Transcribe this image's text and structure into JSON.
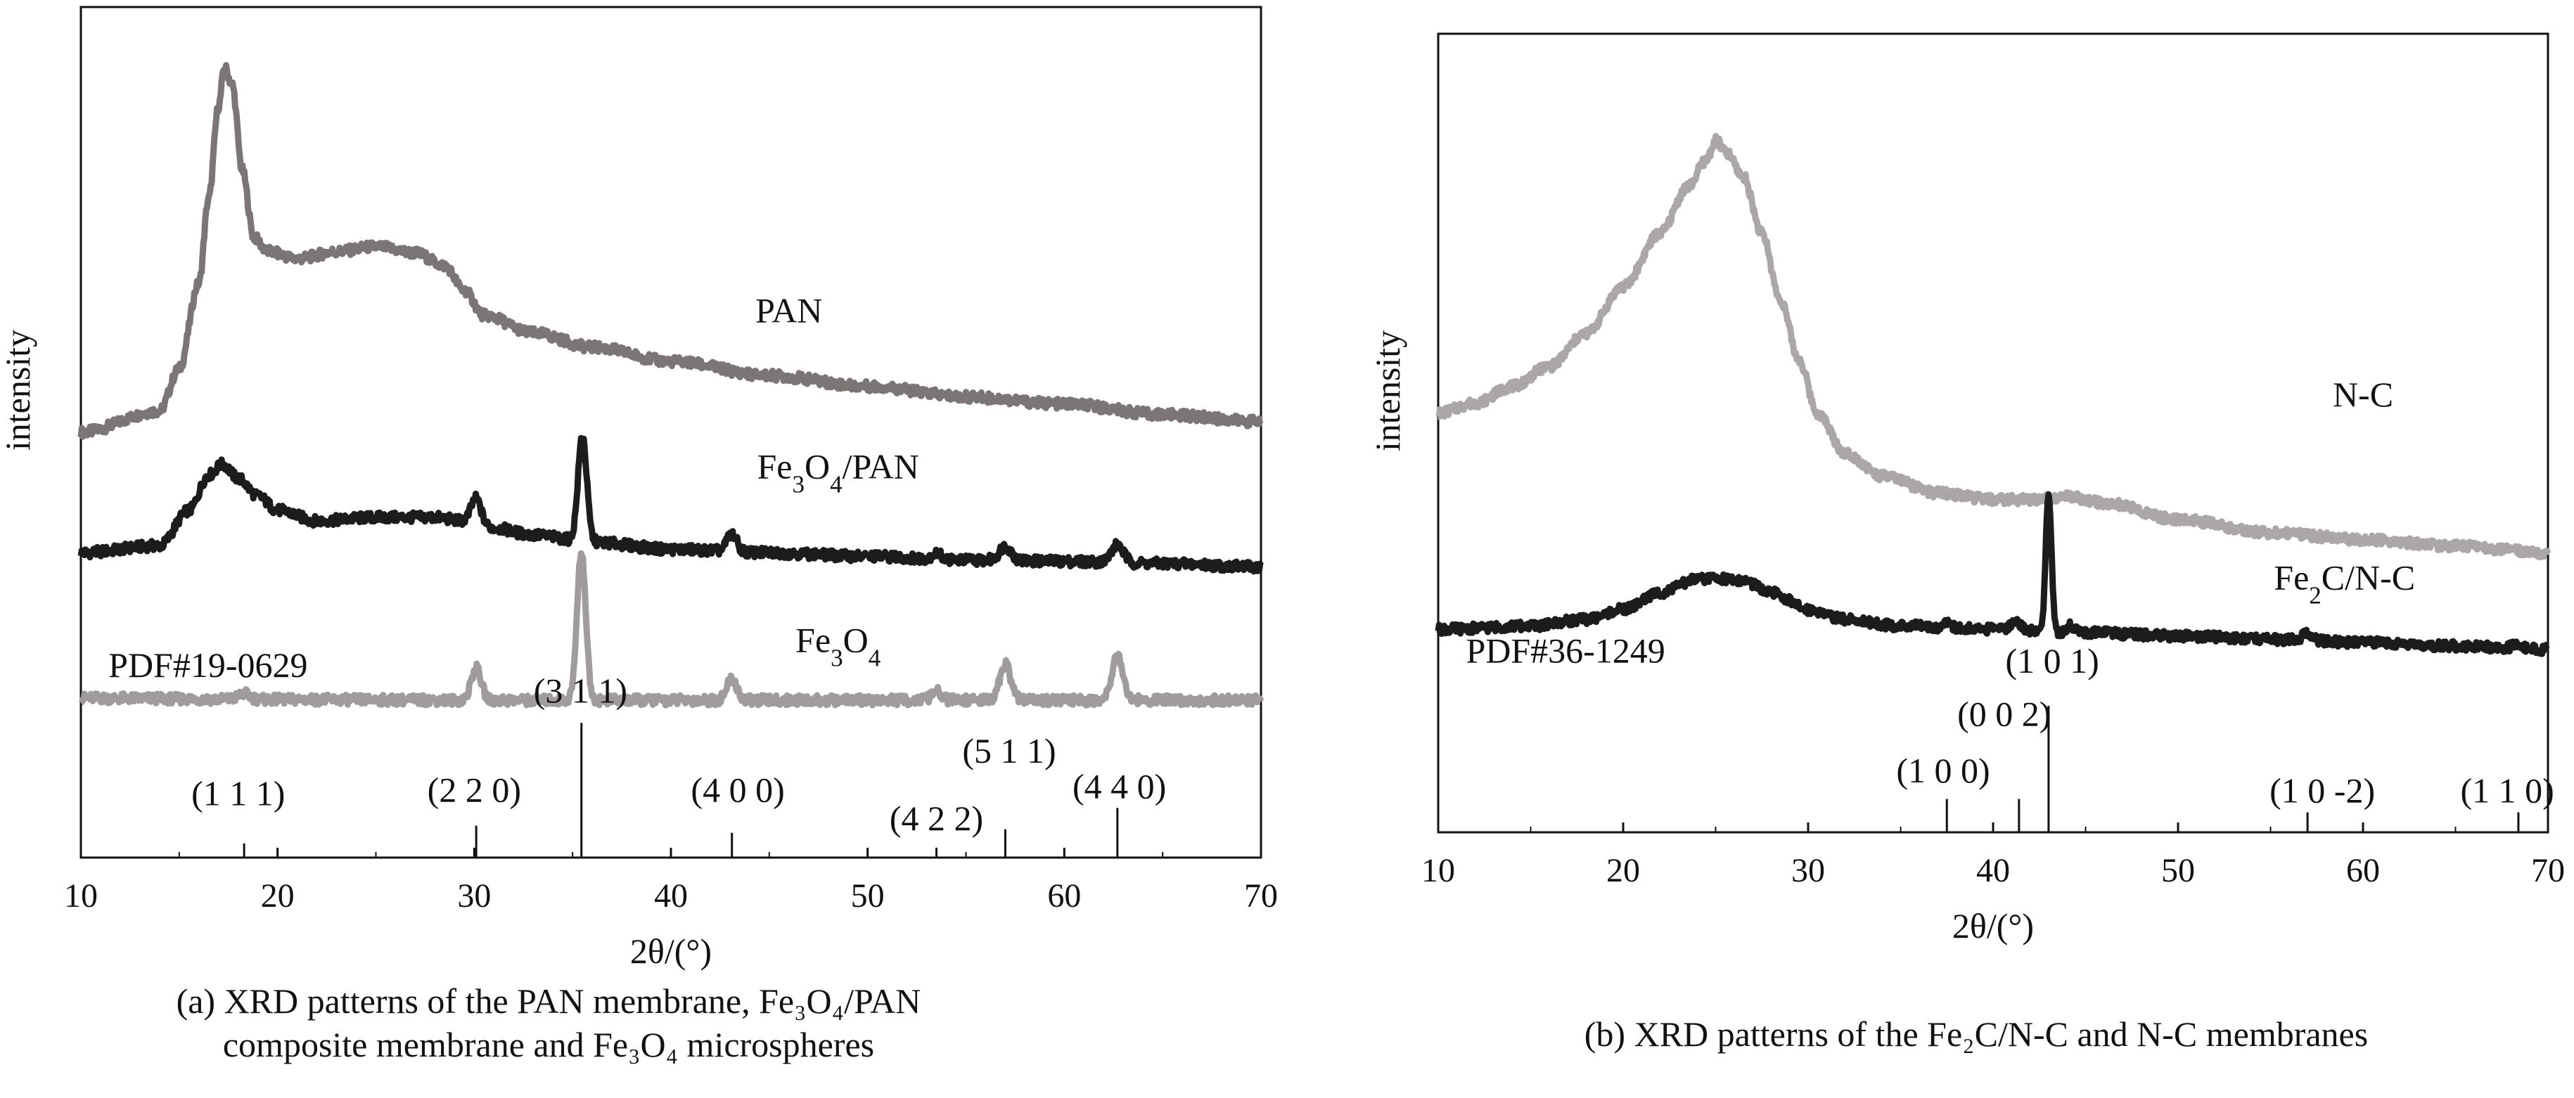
{
  "chart_data": [
    {
      "panel": "a",
      "type": "line",
      "title": "",
      "caption_line1": "(a) XRD patterns of the PAN membrane, Fe₃O₄/PAN",
      "caption_line2": "composite membrane and Fe₃O₄ microspheres",
      "xlabel": "2θ/(°)",
      "ylabel": "intensity",
      "xlim": [
        10,
        70
      ],
      "x_ticks": [
        10,
        20,
        30,
        40,
        50,
        60,
        70
      ],
      "grid": false,
      "legend": "none (inline series labels)",
      "series": [
        {
          "name": "PAN",
          "color": "#7b7576",
          "stroke": 9,
          "label_x": 46,
          "label_y": 0.755,
          "baseline": [
            [
              10,
              0.6
            ],
            [
              14,
              0.63
            ],
            [
              15,
              0.69
            ],
            [
              16,
              0.81
            ],
            [
              16.5,
              0.93
            ],
            [
              17.0,
              1.06
            ],
            [
              17.3,
              1.115
            ],
            [
              17.7,
              1.09
            ],
            [
              18.2,
              0.97
            ],
            [
              18.8,
              0.875
            ],
            [
              19.5,
              0.855
            ],
            [
              21,
              0.845
            ],
            [
              23,
              0.855
            ],
            [
              25,
              0.862
            ],
            [
              27,
              0.853
            ],
            [
              28.5,
              0.835
            ],
            [
              29.5,
              0.8
            ],
            [
              30.5,
              0.765
            ],
            [
              33,
              0.74
            ],
            [
              36,
              0.72
            ],
            [
              40,
              0.7
            ],
            [
              45,
              0.68
            ],
            [
              50,
              0.665
            ],
            [
              55,
              0.65
            ],
            [
              60,
              0.64
            ],
            [
              65,
              0.625
            ],
            [
              70,
              0.615
            ]
          ],
          "peaks": []
        },
        {
          "name": "Fe₃O₄/PAN",
          "color": "#1c1c1c",
          "stroke": 9,
          "label_x": 48.5,
          "label_y": 0.535,
          "baseline": [
            [
              10,
              0.43
            ],
            [
              14,
              0.44
            ],
            [
              15.5,
              0.49
            ],
            [
              16.5,
              0.54
            ],
            [
              17.2,
              0.555
            ],
            [
              18,
              0.535
            ],
            [
              19,
              0.51
            ],
            [
              20,
              0.49
            ],
            [
              22,
              0.475
            ],
            [
              25,
              0.48
            ],
            [
              28,
              0.48
            ],
            [
              29.5,
              0.475
            ],
            [
              31,
              0.465
            ],
            [
              33,
              0.455
            ],
            [
              36,
              0.445
            ],
            [
              40,
              0.435
            ],
            [
              45,
              0.43
            ],
            [
              50,
              0.425
            ],
            [
              55,
              0.42
            ],
            [
              60,
              0.418
            ],
            [
              65,
              0.415
            ],
            [
              70,
              0.41
            ]
          ],
          "peaks": [
            [
              30.1,
              0.035,
              0.25
            ],
            [
              35.5,
              0.15,
              0.22
            ],
            [
              43.1,
              0.025,
              0.25
            ],
            [
              53.5,
              0.008,
              0.25
            ],
            [
              57.0,
              0.02,
              0.3
            ],
            [
              62.7,
              0.025,
              0.3
            ]
          ]
        },
        {
          "name": "Fe₃O₄",
          "color": "#a09c9d",
          "stroke": 9,
          "label_x": 48.5,
          "label_y": 0.29,
          "baseline": [
            [
              10,
              0.225
            ],
            [
              20,
              0.223
            ],
            [
              30,
              0.222
            ],
            [
              40,
              0.222
            ],
            [
              50,
              0.222
            ],
            [
              60,
              0.222
            ],
            [
              70,
              0.222
            ]
          ],
          "peaks": [
            [
              18.3,
              0.008,
              0.3
            ],
            [
              30.1,
              0.045,
              0.25
            ],
            [
              35.45,
              0.21,
              0.22
            ],
            [
              43.1,
              0.03,
              0.25
            ],
            [
              53.5,
              0.012,
              0.25
            ],
            [
              57.0,
              0.05,
              0.28
            ],
            [
              62.7,
              0.065,
              0.28
            ]
          ]
        }
      ],
      "reference_label": "PDF#19-0629",
      "reference_label_x": 11.4,
      "reference_lines": [
        {
          "x": 18.3,
          "h": 0.02,
          "label": "(1 1 1)",
          "label_x": 18.0,
          "label_y": 0.06
        },
        {
          "x": 30.1,
          "h": 0.045,
          "label": "(2 2 0)",
          "label_x": 30.0,
          "label_y": 0.065
        },
        {
          "x": 35.45,
          "h": 0.19,
          "label": "(3 1 1)",
          "label_x": 35.4,
          "label_y": 0.205
        },
        {
          "x": 43.1,
          "h": 0.035,
          "label": "(4 0 0)",
          "label_x": 43.4,
          "label_y": 0.065
        },
        {
          "x": 53.5,
          "h": 0.014,
          "label": "(4 2 2)",
          "label_x": 53.5,
          "label_y": 0.025
        },
        {
          "x": 57.0,
          "h": 0.04,
          "label": "(5 1 1)",
          "label_x": 57.2,
          "label_y": 0.12
        },
        {
          "x": 62.7,
          "h": 0.07,
          "label": "(4 4 0)",
          "label_x": 62.8,
          "label_y": 0.07
        }
      ]
    },
    {
      "panel": "b",
      "type": "line",
      "title": "",
      "caption_line1": "(b) XRD patterns of the Fe₂C/N-C and N-C membranes",
      "caption_line2": "",
      "xlabel": "2θ/(°)",
      "ylabel": "intensity",
      "xlim": [
        10,
        70
      ],
      "x_ticks": [
        10,
        20,
        30,
        40,
        50,
        60,
        70
      ],
      "grid": false,
      "legend": "none (inline series labels)",
      "series": [
        {
          "name": "N-C",
          "color": "#aba7a8",
          "stroke": 9,
          "label_x": 60,
          "label_y": 0.64,
          "baseline": [
            [
              10,
              0.63
            ],
            [
              12,
              0.645
            ],
            [
              14,
              0.67
            ],
            [
              16,
              0.7
            ],
            [
              18,
              0.75
            ],
            [
              20,
              0.82
            ],
            [
              22,
              0.9
            ],
            [
              23.5,
              0.97
            ],
            [
              24.5,
              1.01
            ],
            [
              25.0,
              1.04
            ],
            [
              25.6,
              1.02
            ],
            [
              26.5,
              0.985
            ],
            [
              27.5,
              0.9
            ],
            [
              28.5,
              0.8
            ],
            [
              29.5,
              0.71
            ],
            [
              30.5,
              0.63
            ],
            [
              32,
              0.57
            ],
            [
              34,
              0.535
            ],
            [
              37,
              0.51
            ],
            [
              40,
              0.5
            ],
            [
              42,
              0.5
            ],
            [
              44,
              0.505
            ],
            [
              46,
              0.495
            ],
            [
              50,
              0.47
            ],
            [
              55,
              0.45
            ],
            [
              60,
              0.44
            ],
            [
              65,
              0.43
            ],
            [
              70,
              0.42
            ]
          ],
          "peaks": []
        },
        {
          "name": "Fe₂C/N-C",
          "color": "#1c1c1c",
          "stroke": 9,
          "label_x": 59,
          "label_y": 0.365,
          "baseline": [
            [
              10,
              0.305
            ],
            [
              15,
              0.31
            ],
            [
              18,
              0.32
            ],
            [
              20,
              0.335
            ],
            [
              22,
              0.36
            ],
            [
              24,
              0.38
            ],
            [
              25,
              0.382
            ],
            [
              26.5,
              0.378
            ],
            [
              28,
              0.36
            ],
            [
              30,
              0.335
            ],
            [
              32,
              0.32
            ],
            [
              35,
              0.31
            ],
            [
              40,
              0.305
            ],
            [
              45,
              0.3
            ],
            [
              50,
              0.295
            ],
            [
              55,
              0.29
            ],
            [
              60,
              0.285
            ],
            [
              65,
              0.28
            ],
            [
              70,
              0.275
            ]
          ],
          "peaks": [
            [
              37.5,
              0.01,
              0.2
            ],
            [
              41.2,
              0.015,
              0.25
            ],
            [
              43.0,
              0.21,
              0.15
            ],
            [
              44.2,
              0.01,
              0.2
            ],
            [
              57.0,
              0.012,
              0.25
            ],
            [
              68.4,
              0.008,
              0.25
            ]
          ]
        }
      ],
      "reference_label": "PDF#36-1249",
      "reference_label_x": 11.5,
      "reference_lines": [
        {
          "x": 37.5,
          "h": 0.05,
          "label": "(1 0 0)",
          "label_x": 37.3,
          "label_y": 0.06
        },
        {
          "x": 41.4,
          "h": 0.05,
          "label": "(0 0 2)",
          "label_x": 40.6,
          "label_y": 0.145
        },
        {
          "x": 43.0,
          "h": 0.19,
          "label": "(1 0 1)",
          "label_x": 43.2,
          "label_y": 0.225
        },
        {
          "x": 57.0,
          "h": 0.03,
          "label": "(1 0 -2)",
          "label_x": 57.8,
          "label_y": 0.03
        },
        {
          "x": 68.4,
          "h": 0.03,
          "label": "(1 1 0)",
          "label_x": 67.8,
          "label_y": 0.03
        }
      ]
    }
  ]
}
